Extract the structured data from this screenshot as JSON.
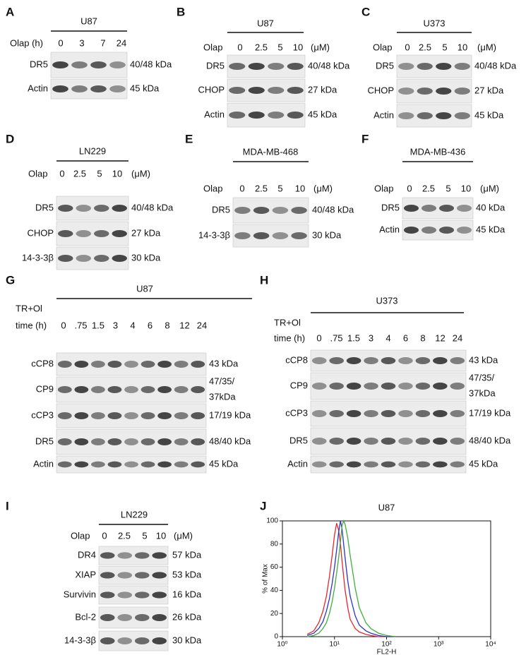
{
  "panels": [
    {
      "letter": "A",
      "cell_line": "U87",
      "treatment": "Olap (h)",
      "lanes": [
        "0",
        "3",
        "7",
        "24"
      ],
      "rows": [
        {
          "label": "DR5",
          "size": [
            "40/48 kDa"
          ]
        },
        {
          "label": "Actin",
          "size": [
            "45 kDa"
          ]
        }
      ]
    },
    {
      "letter": "B",
      "cell_line": "U87",
      "treatment": "Olap",
      "lanes": [
        "0",
        "2.5",
        "5",
        "10"
      ],
      "unit": "(μM)",
      "rows": [
        {
          "label": "DR5",
          "size": [
            "40/48 kDa"
          ]
        },
        {
          "label": "CHOP",
          "size": [
            "27 kDa"
          ]
        },
        {
          "label": "Actin",
          "size": [
            "45 kDa"
          ]
        }
      ]
    },
    {
      "letter": "C",
      "cell_line": "U373",
      "treatment": "Olap",
      "lanes": [
        "0",
        "2.5",
        "5",
        "10"
      ],
      "unit": "(μM)",
      "rows": [
        {
          "label": "DR5",
          "size": [
            "40/48 kDa"
          ]
        },
        {
          "label": "CHOP",
          "size": [
            "27 kDa"
          ]
        },
        {
          "label": "Actin",
          "size": [
            "45 kDa"
          ]
        }
      ]
    },
    {
      "letter": "D",
      "cell_line": "LN229",
      "treatment": "Olap",
      "lanes": [
        "0",
        "2.5",
        "5",
        "10"
      ],
      "unit": "(μM)",
      "rows": [
        {
          "label": "DR5",
          "size": [
            "40/48 kDa"
          ]
        },
        {
          "label": "CHOP",
          "size": [
            "27 kDa"
          ]
        },
        {
          "label": "14-3-3β",
          "size": [
            "30 kDa"
          ]
        }
      ]
    },
    {
      "letter": "E",
      "cell_line": "MDA-MB-468",
      "treatment": "Olap",
      "lanes": [
        "0",
        "2.5",
        "5",
        "10"
      ],
      "unit": "(μM)",
      "rows": [
        {
          "label": "DR5",
          "size": [
            "40/48 kDa"
          ]
        },
        {
          "label": "14-3-3β",
          "size": [
            "30 kDa"
          ]
        }
      ]
    },
    {
      "letter": "F",
      "cell_line": "MDA-MB-436",
      "treatment": "Olap",
      "lanes": [
        "0",
        "2.5",
        "5",
        "10"
      ],
      "unit": "(μM)",
      "rows": [
        {
          "label": "DR5",
          "size": [
            "40 kDa"
          ]
        },
        {
          "label": "Actin",
          "size": [
            "45 kDa"
          ]
        }
      ]
    },
    {
      "letter": "G",
      "cell_line": "U87",
      "treatment": "TR+Ol",
      "time_label": "time (h)",
      "lanes": [
        "0",
        ".75",
        "1.5",
        "3",
        "4",
        "6",
        "8",
        "12",
        "24"
      ],
      "rows": [
        {
          "label": "cCP8",
          "size": [
            "43 kDa"
          ]
        },
        {
          "label": "CP9",
          "size": [
            "47/35/",
            "37kDa"
          ]
        },
        {
          "label": "cCP3",
          "size": [
            "17/19 kDa"
          ]
        },
        {
          "label": "DR5",
          "size": [
            "48/40 kDa"
          ]
        },
        {
          "label": "Actin",
          "size": [
            "45 kDa"
          ]
        }
      ]
    },
    {
      "letter": "H",
      "cell_line": "U373",
      "treatment": "TR+Ol",
      "time_label": "time (h)",
      "lanes": [
        "0",
        ".75",
        "1.5",
        "3",
        "4",
        "6",
        "8",
        "12",
        "24"
      ],
      "rows": [
        {
          "label": "cCP8",
          "size": [
            "43 kDa"
          ]
        },
        {
          "label": "CP9",
          "size": [
            "47/35/",
            "37kDa"
          ]
        },
        {
          "label": "cCP3",
          "size": [
            "17/19 kDa"
          ]
        },
        {
          "label": "DR5",
          "size": [
            "48/40 kDa"
          ]
        },
        {
          "label": "Actin",
          "size": [
            "45 kDa"
          ]
        }
      ]
    },
    {
      "letter": "I",
      "cell_line": "LN229",
      "treatment": "Olap",
      "lanes": [
        "0",
        "2.5",
        "5",
        "10"
      ],
      "unit": "(μM)",
      "rows": [
        {
          "label": "DR4",
          "size": [
            "57 kDa"
          ]
        },
        {
          "label": "XIAP",
          "size": [
            "53 kDa"
          ]
        },
        {
          "label": "Survivin",
          "size": [
            "16 kDa"
          ]
        },
        {
          "label": "Bcl-2",
          "size": [
            "26 kDa"
          ]
        },
        {
          "label": "14-3-3β",
          "size": [
            "30 kDa"
          ]
        }
      ]
    }
  ],
  "panel_j": {
    "letter": "J",
    "type": "line",
    "title": "U87",
    "xlabel": "FL2-H",
    "ylabel": "% of Max",
    "xscale": "log",
    "xlim": [
      1,
      10000
    ],
    "ylim": [
      0,
      100
    ],
    "xticks": [
      {
        "value": 1,
        "label": "10⁰"
      },
      {
        "value": 10,
        "label": "10¹"
      },
      {
        "value": 100,
        "label": "10²"
      },
      {
        "value": 1000,
        "label": "10³"
      },
      {
        "value": 10000,
        "label": "10⁴"
      }
    ],
    "yticks": [
      0,
      20,
      40,
      60,
      80,
      100
    ],
    "x": [
      3,
      4,
      5,
      6,
      7,
      8,
      9,
      10,
      11,
      12,
      13,
      14,
      15,
      16,
      18,
      20,
      25,
      30,
      40,
      50,
      70,
      100,
      150
    ],
    "series": [
      {
        "color": "#e8262a",
        "values": [
          2,
          5,
          12,
          22,
          35,
          52,
          70,
          88,
          98,
          92,
          80,
          65,
          52,
          40,
          25,
          15,
          7,
          4,
          2,
          1,
          0,
          0,
          0
        ]
      },
      {
        "color": "#2a34c8",
        "values": [
          1,
          3,
          7,
          13,
          22,
          33,
          46,
          60,
          75,
          90,
          100,
          93,
          80,
          68,
          48,
          35,
          18,
          10,
          5,
          3,
          1,
          0,
          0
        ]
      },
      {
        "color": "#3fae3a",
        "values": [
          0,
          1,
          3,
          7,
          12,
          20,
          30,
          42,
          55,
          68,
          82,
          96,
          100,
          97,
          85,
          70,
          42,
          25,
          12,
          7,
          3,
          1,
          0
        ]
      }
    ]
  }
}
